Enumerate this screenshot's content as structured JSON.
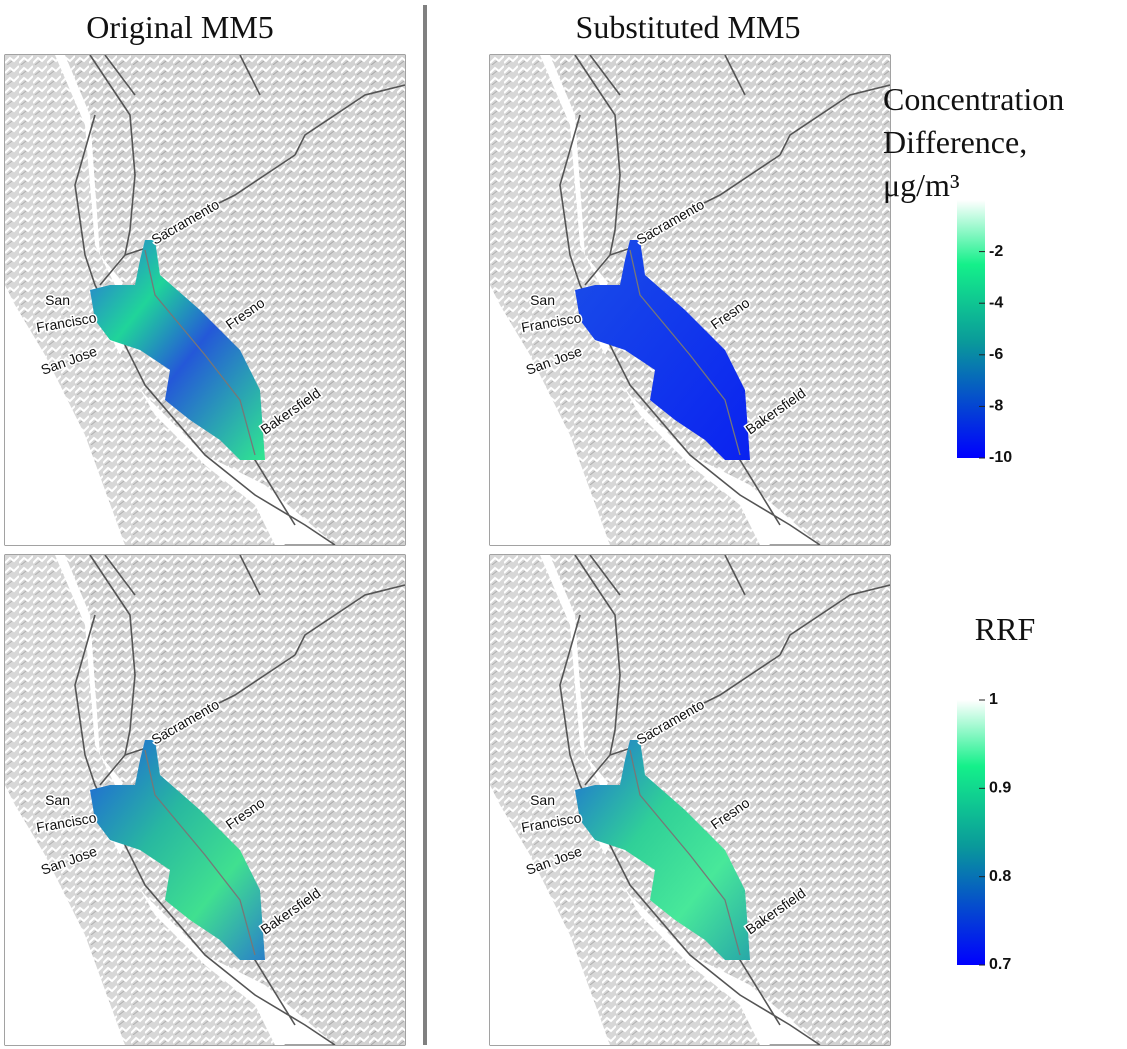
{
  "columns": [
    "Original MM5",
    "Substituted MM5"
  ],
  "map_labels": [
    "Sacramento",
    "San",
    "Francisco",
    "San Jose",
    "Fresno",
    "Bakersfield"
  ],
  "colorbars": [
    {
      "title": [
        "Concentration",
        "Difference,",
        "μg/m³"
      ],
      "lim": [
        -10,
        0
      ],
      "ticks": [
        -2,
        -4,
        -6,
        -8,
        -10
      ]
    },
    {
      "title": [
        "RRF"
      ],
      "lim": [
        0.7,
        1
      ],
      "ticks": [
        1,
        0.9,
        0.8,
        0.7
      ]
    }
  ]
}
